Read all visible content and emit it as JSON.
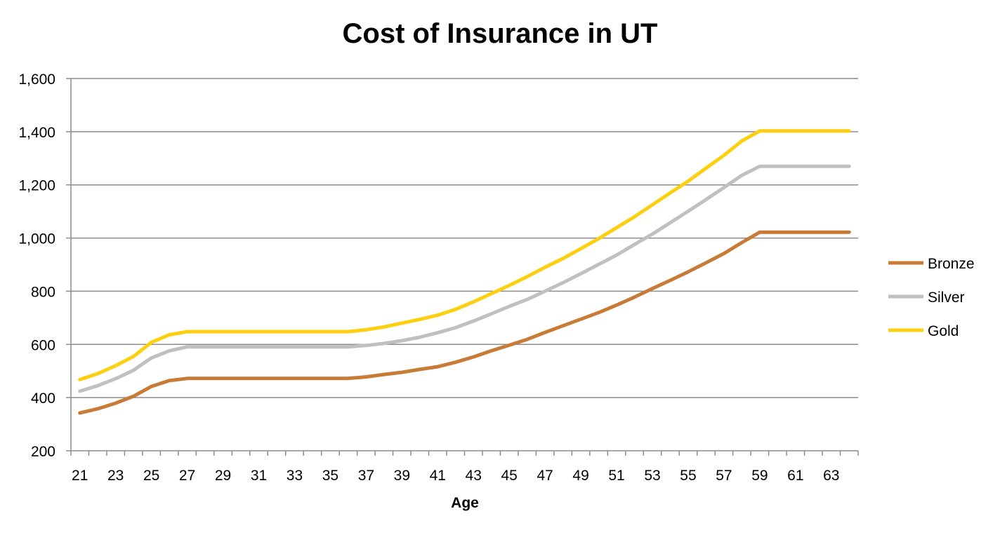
{
  "chart_data": {
    "type": "line",
    "title": "Cost of Insurance in UT",
    "xlabel": "Age",
    "ylabel": "",
    "ylim": [
      200,
      1600
    ],
    "yticks": [
      200,
      400,
      600,
      800,
      1000,
      1200,
      1400,
      1600
    ],
    "ytick_labels": [
      "200",
      "400",
      "600",
      "800",
      "1,000",
      "1,200",
      "1,400",
      "1,600"
    ],
    "x": [
      21,
      22,
      23,
      24,
      25,
      26,
      27,
      28,
      29,
      30,
      31,
      32,
      33,
      34,
      35,
      36,
      37,
      38,
      39,
      40,
      41,
      42,
      43,
      44,
      45,
      46,
      47,
      48,
      49,
      50,
      51,
      52,
      53,
      54,
      55,
      56,
      57,
      58,
      59,
      60,
      61,
      62,
      63,
      64
    ],
    "xtick_labels": [
      "21",
      "23",
      "25",
      "27",
      "29",
      "31",
      "33",
      "35",
      "37",
      "39",
      "41",
      "43",
      "45",
      "47",
      "49",
      "51",
      "53",
      "55",
      "57",
      "59",
      "61",
      "63"
    ],
    "grid": "horizontal",
    "legend_position": "right",
    "series": [
      {
        "name": "Bronze",
        "color": "#c87b36",
        "values": [
          342,
          358,
          379,
          405,
          442,
          464,
          472,
          472,
          472,
          472,
          472,
          472,
          472,
          472,
          472,
          472,
          478,
          487,
          495,
          506,
          516,
          533,
          553,
          576,
          597,
          619,
          645,
          670,
          695,
          720,
          748,
          778,
          810,
          841,
          873,
          907,
          942,
          983,
          1022,
          1022,
          1022,
          1022,
          1022,
          1022
        ]
      },
      {
        "name": "Silver",
        "color": "#c0c0c0",
        "values": [
          424,
          445,
          471,
          503,
          549,
          576,
          591,
          591,
          591,
          591,
          591,
          591,
          591,
          591,
          591,
          591,
          596,
          604,
          614,
          627,
          644,
          663,
          688,
          715,
          743,
          769,
          800,
          832,
          866,
          901,
          936,
          976,
          1015,
          1058,
          1101,
          1145,
          1190,
          1236,
          1270,
          1270,
          1270,
          1270,
          1270,
          1270
        ]
      },
      {
        "name": "Gold",
        "color": "#fcd011",
        "values": [
          468,
          490,
          520,
          555,
          608,
          636,
          648,
          648,
          648,
          648,
          648,
          648,
          648,
          648,
          648,
          648,
          655,
          666,
          680,
          694,
          710,
          732,
          760,
          791,
          822,
          855,
          890,
          923,
          960,
          998,
          1039,
          1080,
          1125,
          1170,
          1214,
          1263,
          1311,
          1365,
          1403,
          1403,
          1403,
          1403,
          1403,
          1403
        ]
      }
    ]
  }
}
